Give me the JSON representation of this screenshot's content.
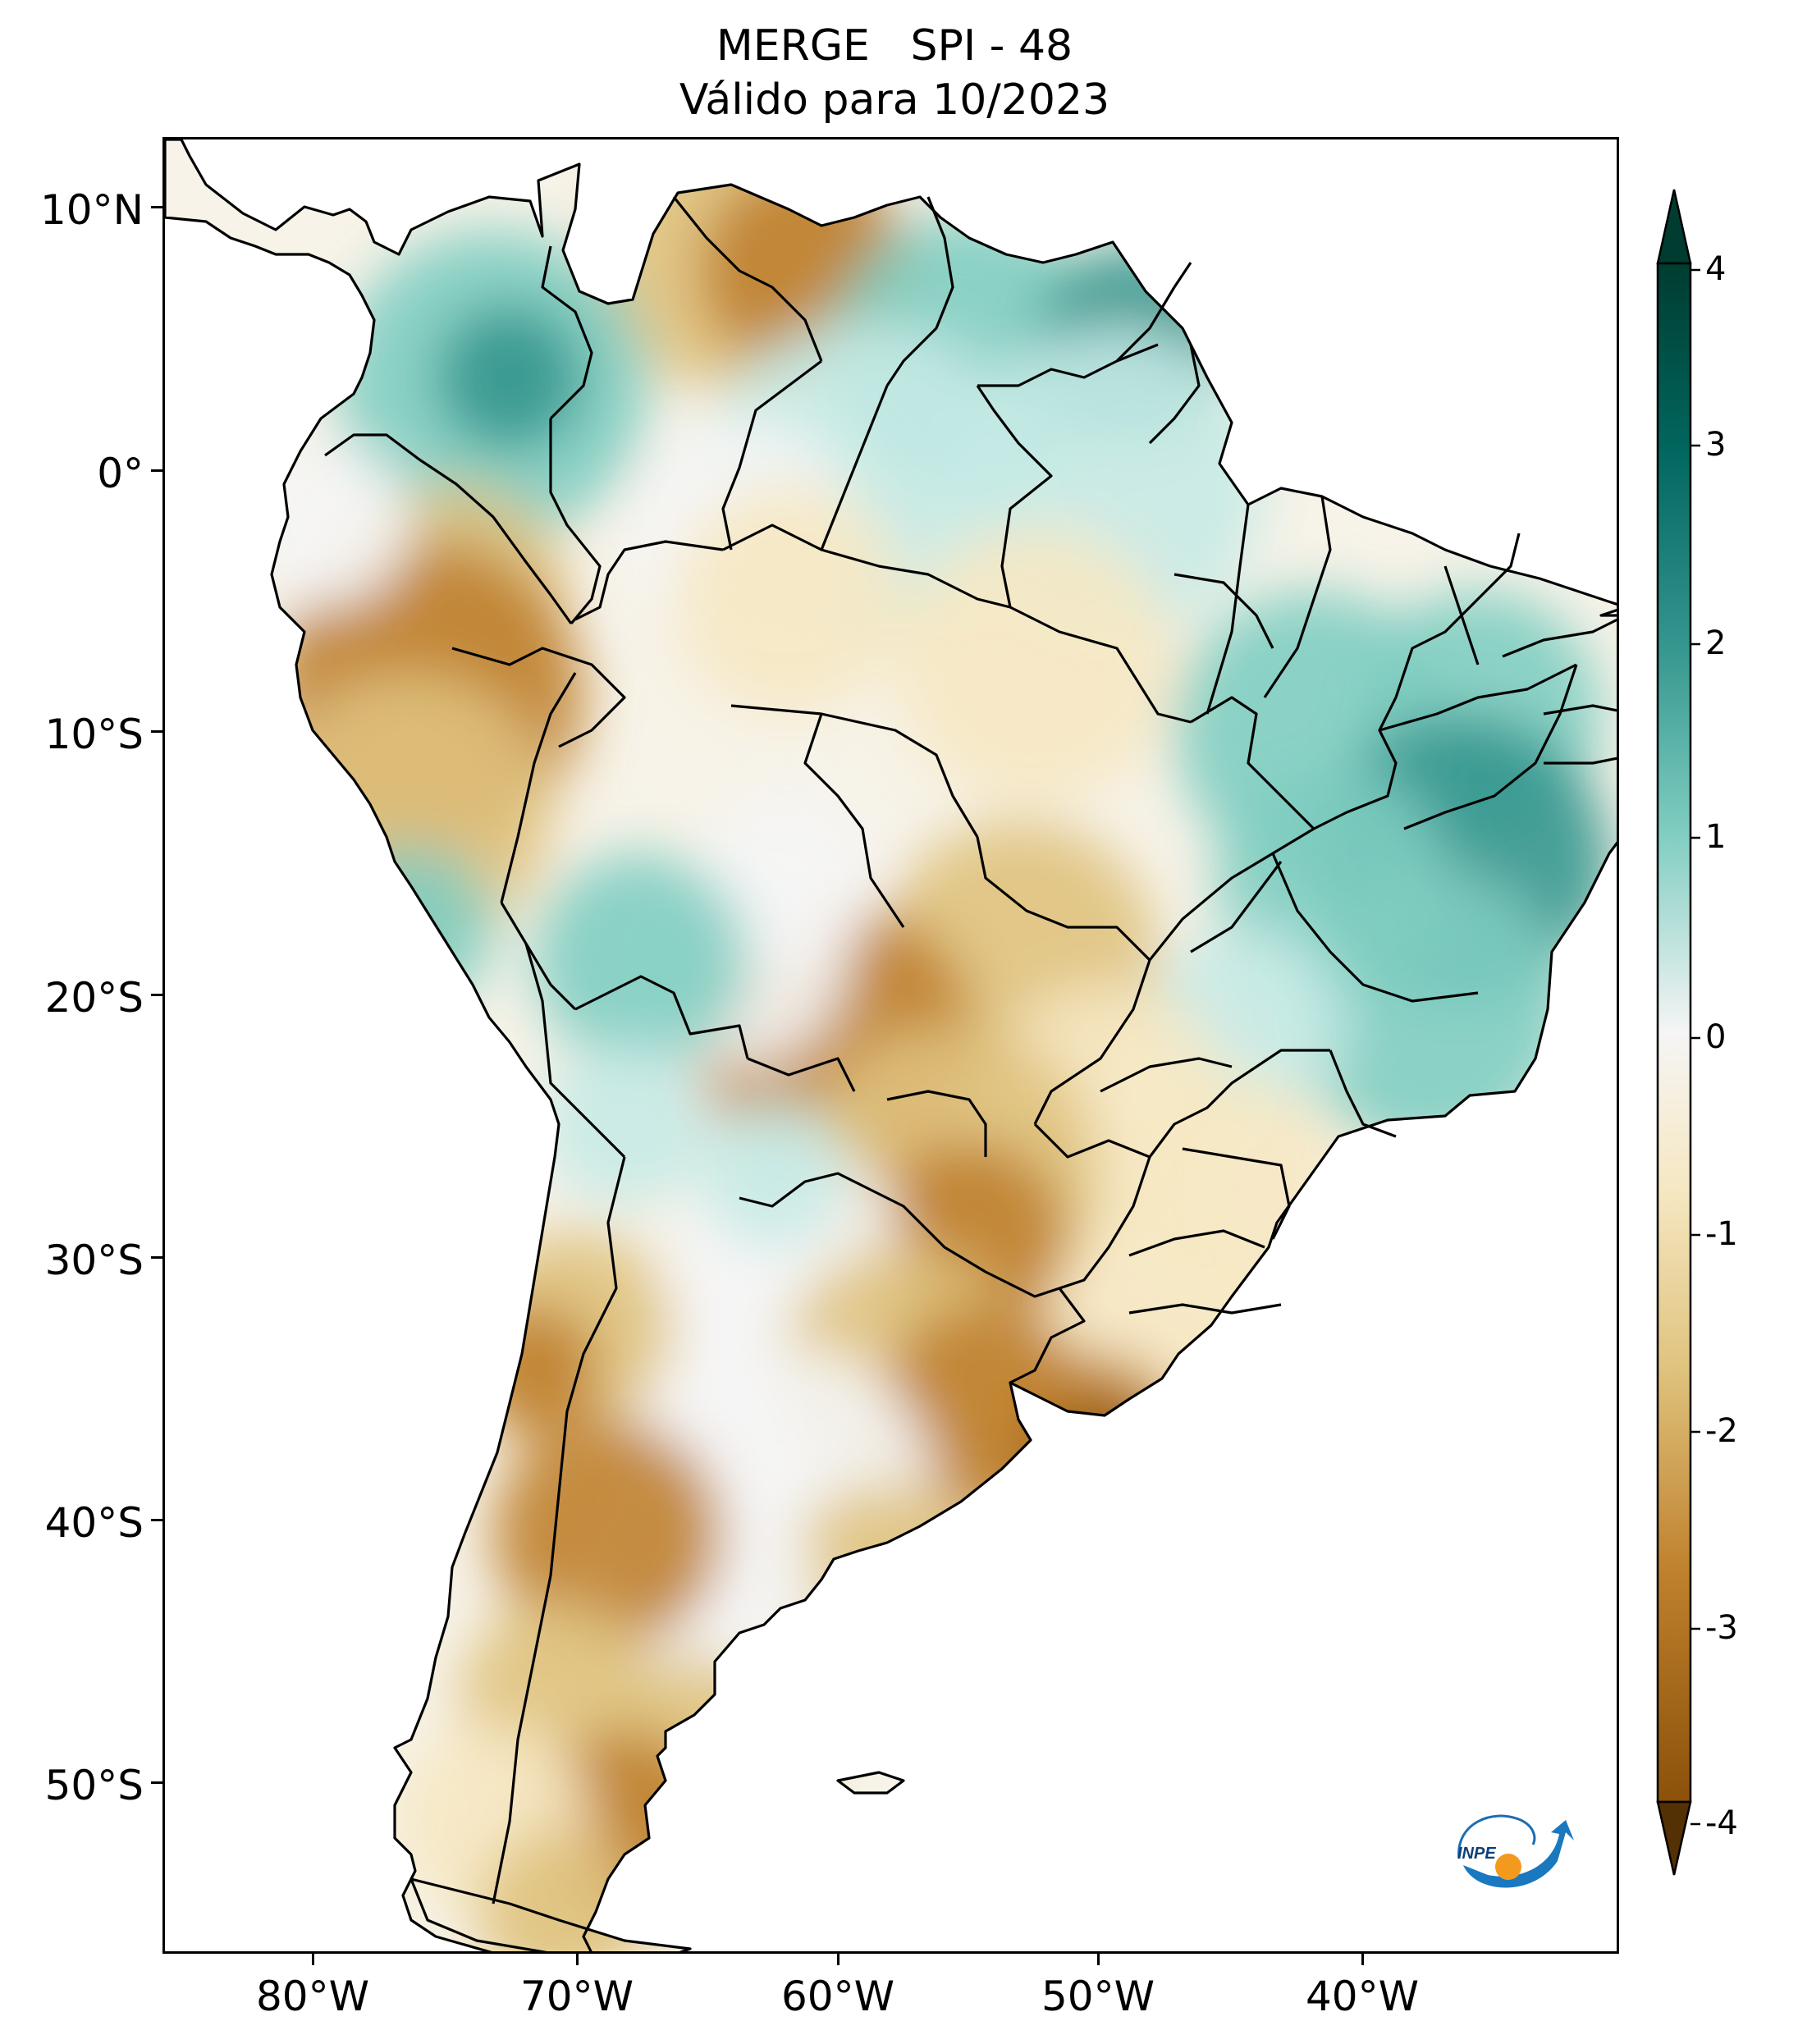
{
  "title": {
    "line1": "MERGE   SPI - 48",
    "line2": "Válido para 10/2023"
  },
  "axes": {
    "lat_ticks": [
      "10°N",
      "0°",
      "10°S",
      "20°S",
      "30°S",
      "40°S",
      "50°S"
    ],
    "lon_ticks": [
      "80°W",
      "70°W",
      "60°W",
      "50°W",
      "40°W"
    ]
  },
  "colorbar": {
    "ticks": [
      "4",
      "3",
      "2",
      "1",
      "0",
      "-1",
      "-2",
      "-3",
      "-4"
    ],
    "min": -4,
    "max": 4,
    "extend": "both",
    "colors": {
      "dry_extreme": "#543005",
      "dry_strong": "#8c510a",
      "dry_moderate": "#bf812d",
      "dry_mild": "#dfc27d",
      "dry_slight": "#f6e8c3",
      "neutral": "#f5f5f5",
      "wet_slight": "#c7eae5",
      "wet_mild": "#80cdc1",
      "wet_moderate": "#35978f",
      "wet_strong": "#01665e",
      "wet_extreme": "#003c30"
    }
  },
  "logo": {
    "text": "INPE"
  }
}
